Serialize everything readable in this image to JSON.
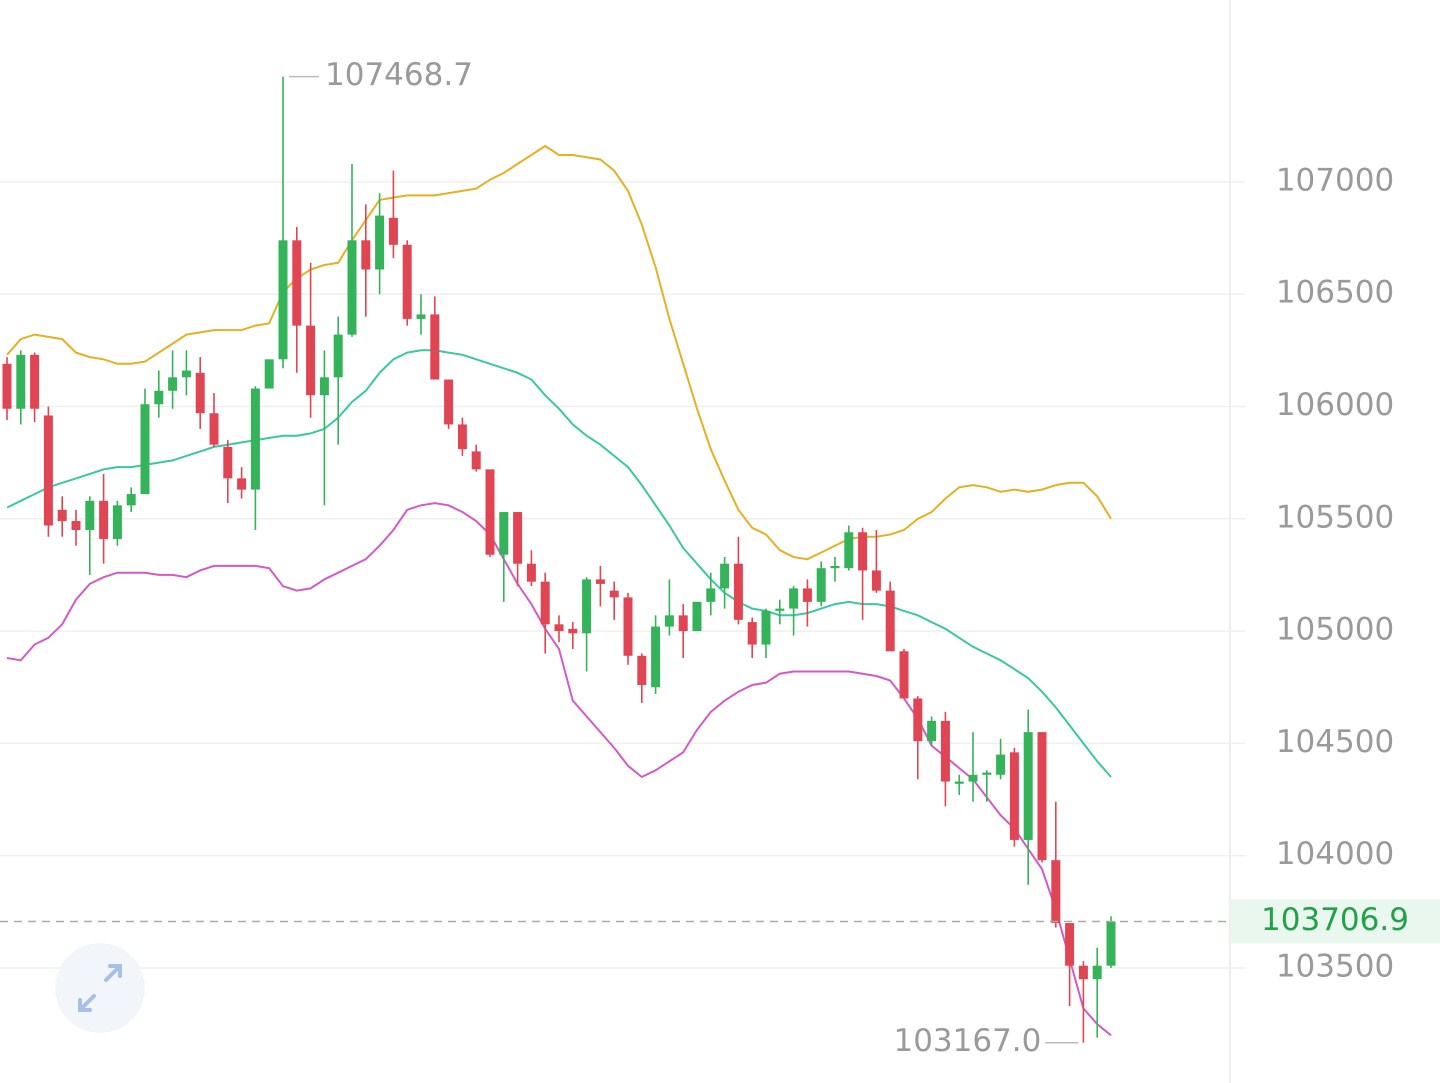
{
  "chart_data": {
    "type": "candlestick",
    "ylim": [
      103050,
      107810
    ],
    "yticks": [
      103500,
      104000,
      104500,
      105000,
      105500,
      106000,
      106500,
      107000
    ],
    "grid": true,
    "up_color": "#35b35a",
    "down_color": "#e04553",
    "candles": {
      "open": [
        106190,
        105990,
        106230,
        105960,
        105540,
        105490,
        105450,
        105580,
        105410,
        105560,
        105610,
        106010,
        106070,
        106130,
        106150,
        105970,
        105820,
        105680,
        105630,
        106080,
        106210,
        106740,
        106360,
        106050,
        106130,
        106320,
        106740,
        106610,
        106840,
        106720,
        106390,
        106410,
        106120,
        105920,
        105800,
        105720,
        105340,
        105530,
        105300,
        105220,
        105030,
        105010,
        104990,
        105230,
        105180,
        105150,
        104890,
        104750,
        105020,
        105070,
        105000,
        105130,
        105190,
        105300,
        105040,
        104940,
        105090,
        105100,
        105190,
        105130,
        105280,
        105280,
        105440,
        105270,
        105180,
        104910,
        104700,
        104510,
        104600,
        104320,
        104330,
        104360,
        104360,
        104460,
        104070,
        104550,
        103980,
        103700,
        103510,
        103450,
        103510
      ],
      "high": [
        106220,
        106250,
        106240,
        106000,
        105600,
        105540,
        105600,
        105700,
        105580,
        105640,
        106080,
        106160,
        106250,
        106250,
        106220,
        106060,
        105850,
        105730,
        106090,
        106210,
        107468.7,
        106800,
        106640,
        106250,
        106400,
        107080,
        106900,
        106950,
        107050,
        106740,
        106500,
        106490,
        106120,
        105950,
        105830,
        105720,
        105530,
        105530,
        105360,
        105260,
        105070,
        105040,
        105240,
        105290,
        105220,
        105170,
        104900,
        105070,
        105230,
        105120,
        105130,
        105260,
        105330,
        105420,
        105060,
        105100,
        105140,
        105200,
        105230,
        105310,
        105330,
        105470,
        105460,
        105450,
        105220,
        104920,
        104710,
        104620,
        104640,
        104360,
        104550,
        104380,
        104520,
        104480,
        104650,
        104550,
        104240,
        103700,
        103530,
        103590,
        103730
      ],
      "low": [
        105940,
        105920,
        105930,
        105420,
        105420,
        105380,
        105250,
        105300,
        105380,
        105530,
        105610,
        105950,
        105990,
        106050,
        105900,
        105820,
        105570,
        105590,
        105450,
        106080,
        106170,
        106150,
        105950,
        105560,
        105830,
        106310,
        106400,
        106500,
        106660,
        106360,
        106320,
        106120,
        105900,
        105780,
        105710,
        105330,
        105130,
        105200,
        105200,
        104900,
        104950,
        104920,
        104820,
        105110,
        105050,
        104850,
        104680,
        104720,
        104980,
        104880,
        105000,
        105070,
        105100,
        105030,
        104880,
        104880,
        105030,
        104980,
        105020,
        105110,
        105220,
        105270,
        105050,
        105170,
        104910,
        104700,
        104340,
        104490,
        104220,
        104270,
        104240,
        104240,
        104340,
        104040,
        103870,
        103970,
        103680,
        103330,
        103167.0,
        103190,
        103500
      ],
      "close": [
        105990,
        106230,
        105990,
        105470,
        105490,
        105450,
        105580,
        105410,
        105560,
        105610,
        106010,
        106070,
        106130,
        106160,
        105970,
        105830,
        105680,
        105630,
        106080,
        106210,
        106740,
        106360,
        106050,
        106130,
        106320,
        106740,
        106610,
        106850,
        106720,
        106390,
        106410,
        106120,
        105920,
        105810,
        105720,
        105340,
        105530,
        105300,
        105220,
        105030,
        105000,
        104990,
        105230,
        105210,
        105150,
        104890,
        104760,
        105020,
        105070,
        105000,
        105130,
        105190,
        105300,
        105050,
        104940,
        105090,
        105100,
        105190,
        105130,
        105280,
        105290,
        105440,
        105270,
        105180,
        104910,
        104700,
        104510,
        104600,
        104330,
        104330,
        104360,
        104370,
        104450,
        104070,
        104550,
        103980,
        103700,
        103510,
        103450,
        103510,
        103706.9
      ]
    },
    "bands": [
      {
        "color": "#e3b125",
        "values": [
          106230,
          106300,
          106320,
          106310,
          106300,
          106240,
          106220,
          106210,
          106190,
          106190,
          106200,
          106240,
          106280,
          106320,
          106330,
          106340,
          106340,
          106340,
          106360,
          106370,
          106510,
          106570,
          106610,
          106630,
          106640,
          106740,
          106830,
          106920,
          106930,
          106940,
          106940,
          106940,
          106950,
          106960,
          106970,
          107010,
          107040,
          107080,
          107120,
          107160,
          107120,
          107120,
          107110,
          107100,
          107050,
          106960,
          106810,
          106620,
          106390,
          106190,
          105990,
          105810,
          105670,
          105540,
          105460,
          105430,
          105360,
          105330,
          105320,
          105350,
          105380,
          105410,
          105420,
          105420,
          105430,
          105450,
          105500,
          105530,
          105590,
          105640,
          105650,
          105640,
          105620,
          105630,
          105620,
          105630,
          105650,
          105660,
          105660,
          105600,
          105500
        ]
      },
      {
        "color": "#3cc6a3",
        "values": [
          105550,
          105580,
          105610,
          105640,
          105660,
          105680,
          105700,
          105720,
          105730,
          105730,
          105740,
          105750,
          105760,
          105780,
          105800,
          105820,
          105830,
          105840,
          105850,
          105860,
          105870,
          105870,
          105880,
          105900,
          105950,
          106020,
          106070,
          106150,
          106210,
          106240,
          106250,
          106250,
          106240,
          106230,
          106210,
          106190,
          106170,
          106150,
          106120,
          106050,
          105990,
          105920,
          105870,
          105830,
          105780,
          105730,
          105650,
          105560,
          105470,
          105370,
          105300,
          105230,
          105170,
          105130,
          105100,
          105090,
          105070,
          105070,
          105080,
          105100,
          105120,
          105130,
          105120,
          105120,
          105110,
          105090,
          105070,
          105040,
          105010,
          104970,
          104930,
          104900,
          104870,
          104830,
          104790,
          104730,
          104660,
          104580,
          104500,
          104420,
          104350
        ]
      },
      {
        "color": "#d25ac5",
        "values": [
          104880,
          104870,
          104940,
          104970,
          105030,
          105140,
          105210,
          105240,
          105260,
          105260,
          105260,
          105250,
          105250,
          105240,
          105270,
          105290,
          105290,
          105290,
          105290,
          105280,
          105200,
          105180,
          105190,
          105230,
          105260,
          105290,
          105320,
          105380,
          105450,
          105540,
          105560,
          105570,
          105560,
          105530,
          105490,
          105430,
          105320,
          105210,
          105120,
          105010,
          104920,
          104690,
          104620,
          104550,
          104480,
          104400,
          104350,
          104380,
          104420,
          104460,
          104560,
          104640,
          104690,
          104730,
          104760,
          104770,
          104810,
          104820,
          104820,
          104820,
          104820,
          104820,
          104810,
          104800,
          104780,
          104700,
          104610,
          104490,
          104440,
          104390,
          104340,
          104260,
          104180,
          104120,
          104030,
          103940,
          103760,
          103540,
          103320,
          103250,
          103200
        ]
      }
    ],
    "annotations": {
      "high": {
        "value": 107468.7,
        "label": "107468.7"
      },
      "low": {
        "value": 103167.0,
        "label": "103167.0"
      },
      "last": {
        "value": 103706.9,
        "label": "103706.9"
      }
    }
  }
}
